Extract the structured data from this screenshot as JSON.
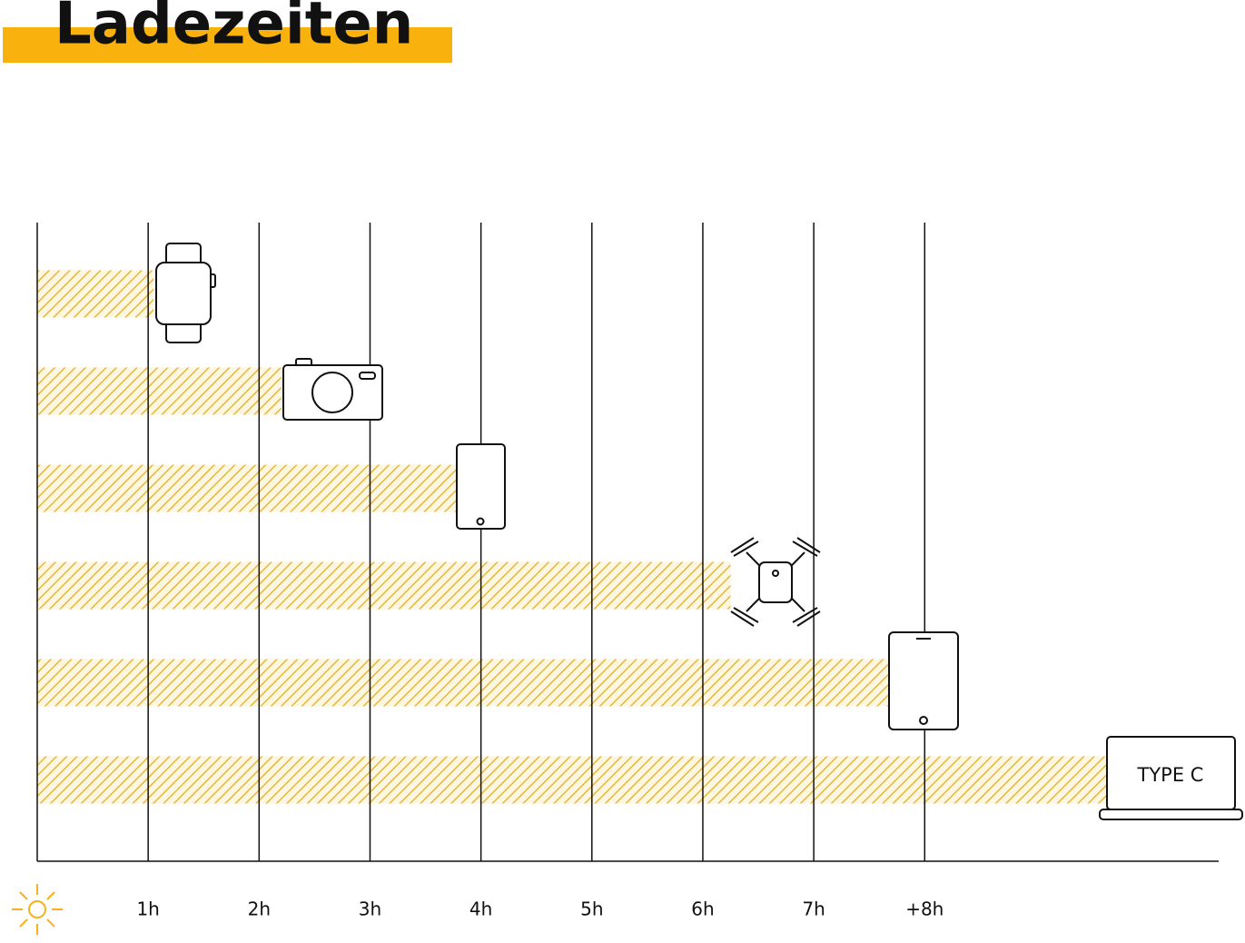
{
  "chart_data": {
    "type": "bar",
    "orientation": "horizontal",
    "title": "Ladezeiten",
    "title_highlight": "#f9b10d",
    "categories": [
      null,
      null,
      null,
      null,
      null,
      null
    ],
    "values": [
      1.05,
      2.2,
      3.8,
      6.25,
      7.7,
      9.65
    ],
    "color": "#e6b83a",
    "xlim": [
      0,
      10.65
    ],
    "xticks": [
      {
        "value": 1,
        "label": "1h"
      },
      {
        "value": 2,
        "label": "2h"
      },
      {
        "value": 3,
        "label": "3h"
      },
      {
        "value": 4,
        "label": "4h"
      },
      {
        "value": 5,
        "label": "5h"
      },
      {
        "value": 6,
        "label": "6h"
      },
      {
        "value": 7,
        "label": "7h"
      },
      {
        "value": 8,
        "label": "+8h"
      }
    ],
    "grid": true,
    "annotation": "TYPE C"
  }
}
